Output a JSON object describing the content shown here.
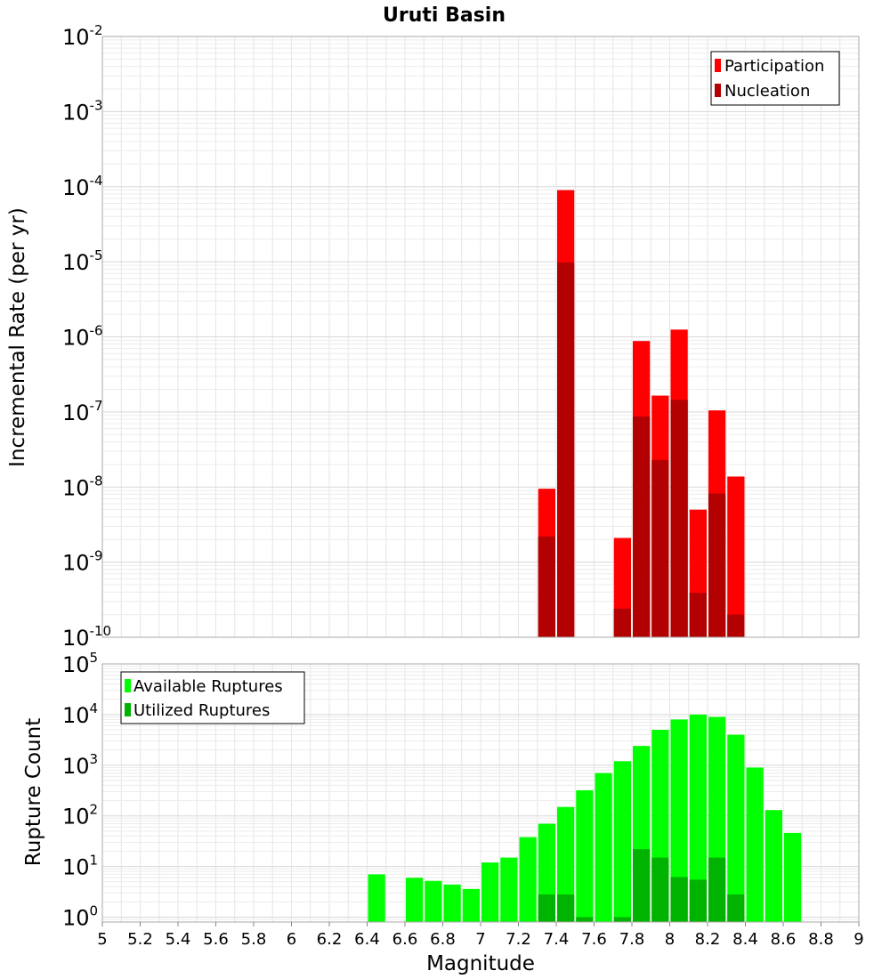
{
  "chart_data": [
    {
      "type": "bar",
      "title": "Uruti Basin",
      "xlabel": "Magnitude",
      "ylabel": "Incremental Rate (per yr)",
      "yscale": "log",
      "ylim": [
        1e-10,
        0.01
      ],
      "xlim": [
        5,
        9
      ],
      "y_ticks": [
        {
          "base": "10",
          "exp": "-10"
        },
        {
          "base": "10",
          "exp": "-9"
        },
        {
          "base": "10",
          "exp": "-8"
        },
        {
          "base": "10",
          "exp": "-7"
        },
        {
          "base": "10",
          "exp": "-6"
        },
        {
          "base": "10",
          "exp": "-5"
        },
        {
          "base": "10",
          "exp": "-4"
        },
        {
          "base": "10",
          "exp": "-3"
        },
        {
          "base": "10",
          "exp": "-2"
        }
      ],
      "grid": true,
      "legend_position": "top-right",
      "series": [
        {
          "name": "Participation",
          "color": "#ff0000",
          "points": [
            {
              "x": 7.35,
              "y": 9.5e-09
            },
            {
              "x": 7.45,
              "y": 9e-05
            },
            {
              "x": 7.75,
              "y": 2.1e-09
            },
            {
              "x": 7.85,
              "y": 8.8e-07
            },
            {
              "x": 7.95,
              "y": 1.65e-07
            },
            {
              "x": 8.05,
              "y": 1.25e-06
            },
            {
              "x": 8.15,
              "y": 5e-09
            },
            {
              "x": 8.25,
              "y": 1.05e-07
            },
            {
              "x": 8.35,
              "y": 1.38e-08
            }
          ]
        },
        {
          "name": "Nucleation",
          "color": "#b30000",
          "points": [
            {
              "x": 7.35,
              "y": 2.2e-09
            },
            {
              "x": 7.45,
              "y": 9.8e-06
            },
            {
              "x": 7.75,
              "y": 2.4e-10
            },
            {
              "x": 7.85,
              "y": 8.7e-08
            },
            {
              "x": 7.95,
              "y": 2.3e-08
            },
            {
              "x": 8.05,
              "y": 1.45e-07
            },
            {
              "x": 8.15,
              "y": 3.9e-10
            },
            {
              "x": 8.25,
              "y": 8.2e-09
            },
            {
              "x": 8.35,
              "y": 2e-10
            }
          ]
        }
      ]
    },
    {
      "type": "bar",
      "xlabel": "Magnitude",
      "ylabel": "Rupture Count",
      "yscale": "log",
      "ylim": [
        0.8,
        100000.0
      ],
      "xlim": [
        5,
        9
      ],
      "x_ticks": [
        "5",
        "5.2",
        "5.4",
        "5.6",
        "5.8",
        "6",
        "6.2",
        "6.4",
        "6.6",
        "6.8",
        "7",
        "7.2",
        "7.4",
        "7.6",
        "7.8",
        "8",
        "8.2",
        "8.4",
        "8.6",
        "8.8",
        "9"
      ],
      "y_ticks": [
        {
          "base": "10",
          "exp": "0"
        },
        {
          "base": "10",
          "exp": "1"
        },
        {
          "base": "10",
          "exp": "2"
        },
        {
          "base": "10",
          "exp": "3"
        },
        {
          "base": "10",
          "exp": "4"
        },
        {
          "base": "10",
          "exp": "5"
        }
      ],
      "grid": true,
      "legend_position": "top-left",
      "series": [
        {
          "name": "Available Ruptures",
          "color": "#00ff00",
          "points": [
            {
              "x": 6.45,
              "y": 7
            },
            {
              "x": 6.65,
              "y": 6
            },
            {
              "x": 6.75,
              "y": 5.2
            },
            {
              "x": 6.85,
              "y": 4.4
            },
            {
              "x": 6.95,
              "y": 3.6
            },
            {
              "x": 7.05,
              "y": 12
            },
            {
              "x": 7.15,
              "y": 15
            },
            {
              "x": 7.25,
              "y": 38
            },
            {
              "x": 7.35,
              "y": 70
            },
            {
              "x": 7.45,
              "y": 150
            },
            {
              "x": 7.55,
              "y": 320
            },
            {
              "x": 7.65,
              "y": 700
            },
            {
              "x": 7.75,
              "y": 1200
            },
            {
              "x": 7.85,
              "y": 2400
            },
            {
              "x": 7.95,
              "y": 5000
            },
            {
              "x": 8.05,
              "y": 8000
            },
            {
              "x": 8.15,
              "y": 10000
            },
            {
              "x": 8.25,
              "y": 9000
            },
            {
              "x": 8.35,
              "y": 4000
            },
            {
              "x": 8.45,
              "y": 900
            },
            {
              "x": 8.55,
              "y": 130
            },
            {
              "x": 8.65,
              "y": 46
            }
          ]
        },
        {
          "name": "Utilized Ruptures",
          "color": "#00b300",
          "points": [
            {
              "x": 7.35,
              "y": 2.8
            },
            {
              "x": 7.45,
              "y": 2.8
            },
            {
              "x": 7.55,
              "y": 1
            },
            {
              "x": 7.75,
              "y": 1
            },
            {
              "x": 7.85,
              "y": 22
            },
            {
              "x": 7.95,
              "y": 15
            },
            {
              "x": 8.05,
              "y": 6.2
            },
            {
              "x": 8.15,
              "y": 5.5
            },
            {
              "x": 8.25,
              "y": 15
            },
            {
              "x": 8.35,
              "y": 2.8
            }
          ]
        }
      ]
    }
  ]
}
